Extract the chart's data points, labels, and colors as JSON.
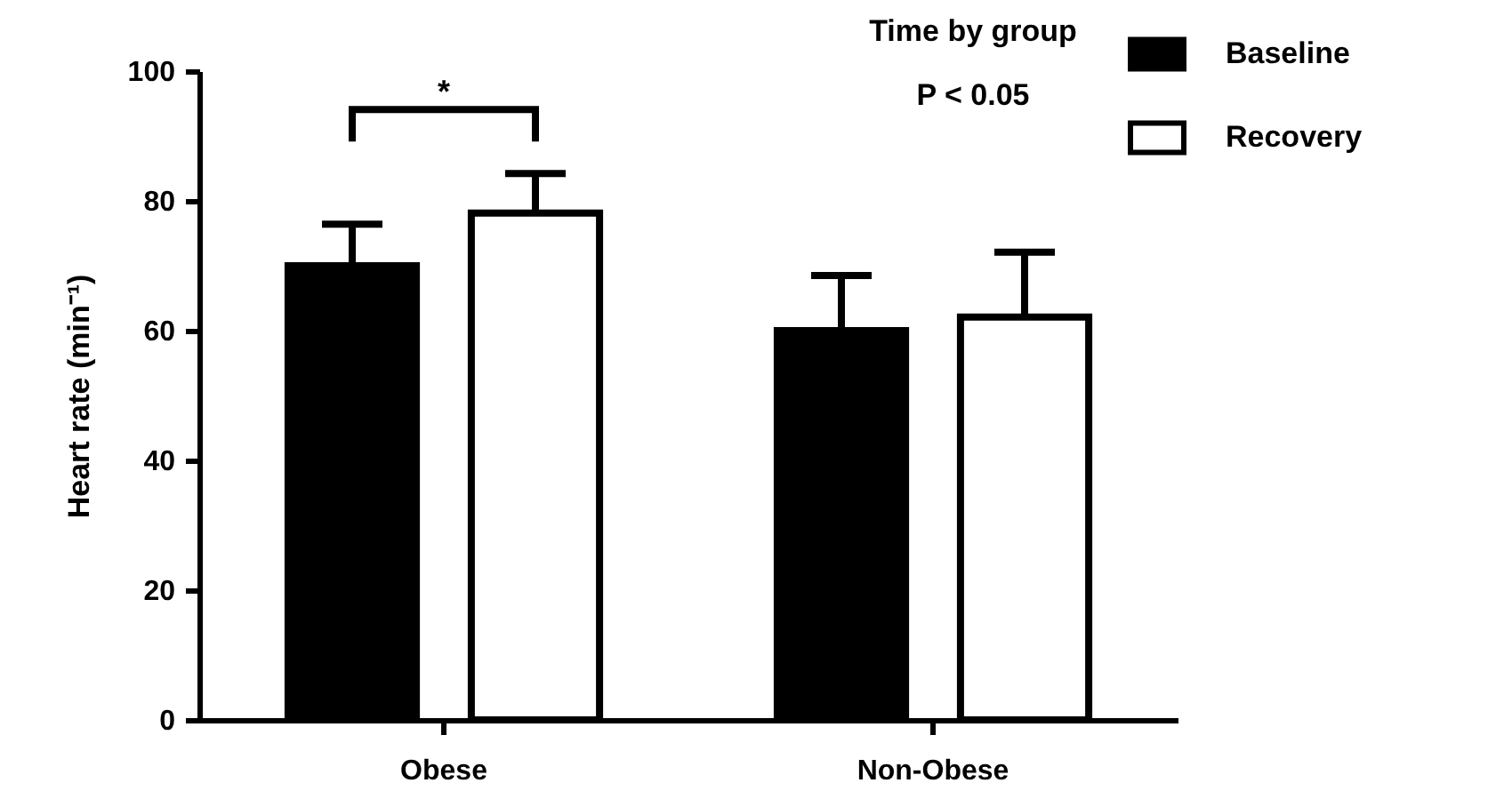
{
  "chart_data": {
    "type": "bar",
    "categories": [
      "Obese",
      "Non-Obese"
    ],
    "series": [
      {
        "name": "Baseline",
        "color": "#000000",
        "values": [
          70,
          60
        ],
        "errors": [
          [
            70,
            76.4
          ],
          [
            60,
            68.5
          ]
        ]
      },
      {
        "name": "Recovery",
        "color": "#ffffff",
        "values": [
          78.1,
          62.1
        ],
        "errors": [
          [
            78.1,
            84.2
          ],
          [
            62.1,
            72.1
          ]
        ]
      }
    ],
    "ylabel": "Heart rate (min⁻¹)",
    "ylim": [
      0,
      100
    ],
    "yticks": [
      0,
      20,
      40,
      60,
      80,
      100
    ],
    "annotations": [
      "Time by group",
      "P < 0.05",
      "*"
    ],
    "grid": false,
    "legend": "top right"
  }
}
